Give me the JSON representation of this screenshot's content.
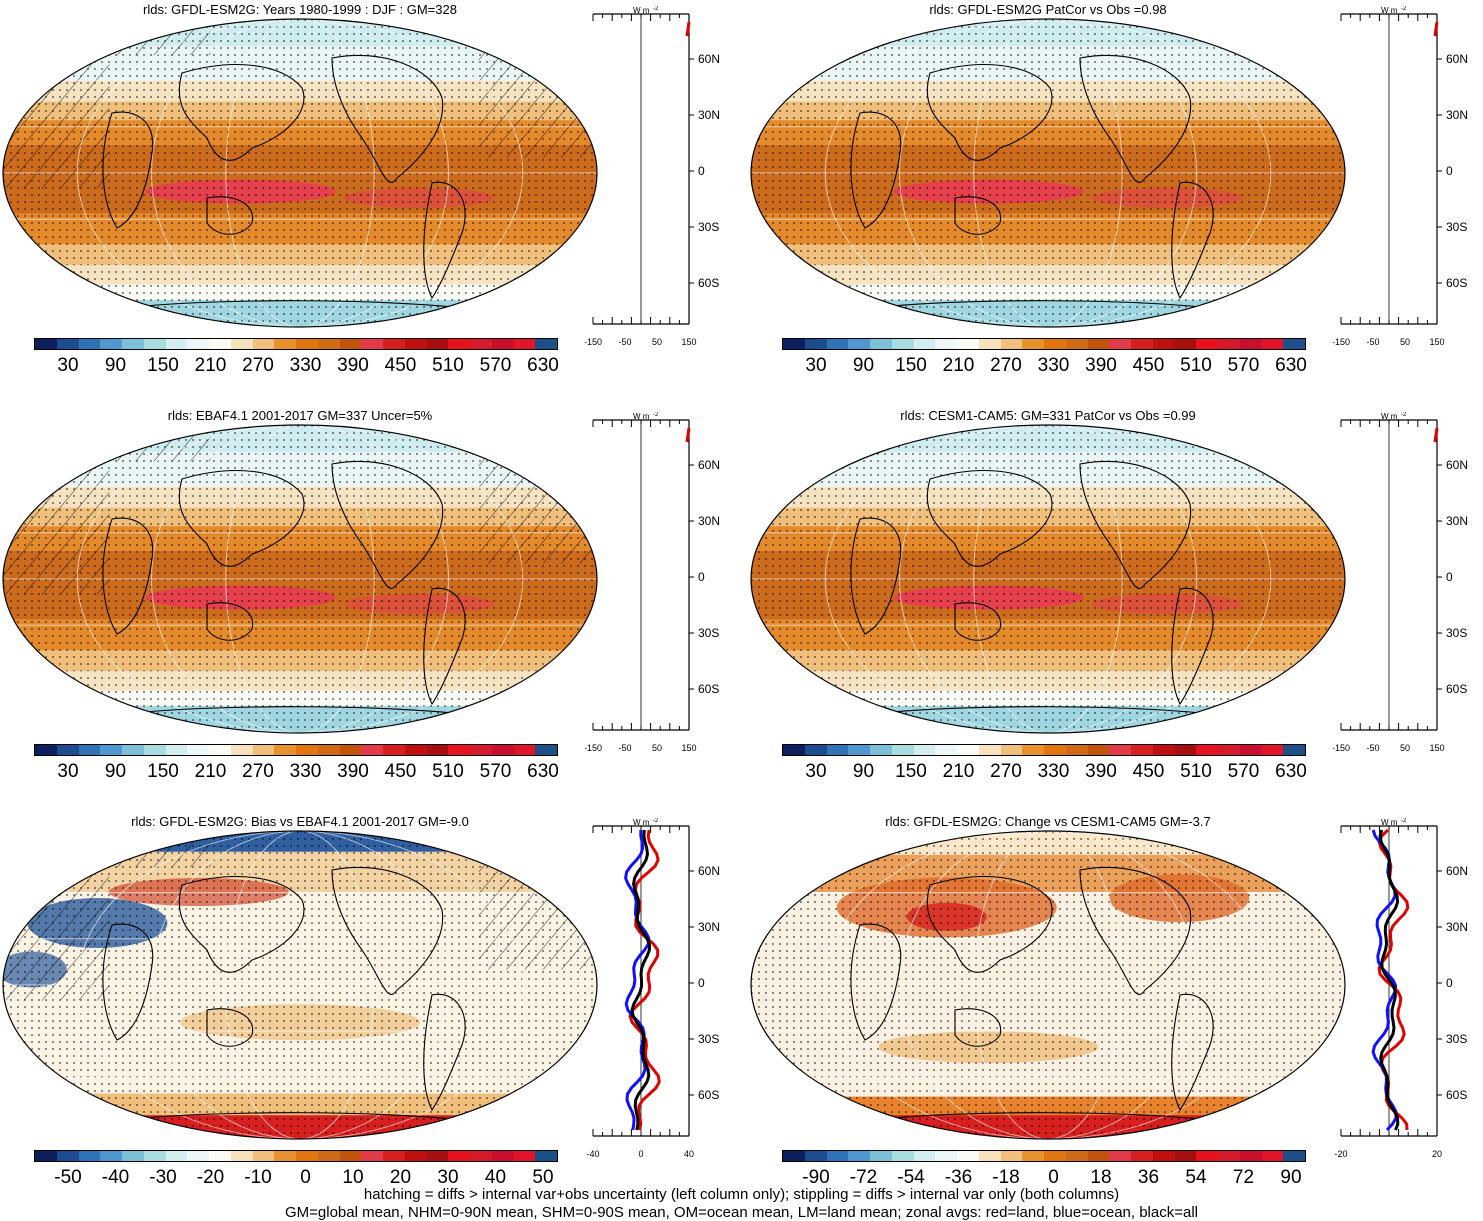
{
  "panels": [
    {
      "title": "rlds: GFDL-ESM2G: Years 1980-1999 : DJF : GM=328",
      "colorbar_ticks": [
        "30",
        "90",
        "150",
        "210",
        "270",
        "330",
        "390",
        "450",
        "510",
        "570",
        "630"
      ],
      "zonal_ticks": [
        "-150",
        "-50",
        "50",
        "150"
      ],
      "palette": "abs",
      "style": "abs",
      "hatch": true
    },
    {
      "title": "rlds: GFDL-ESM2G PatCor vs Obs =0.98",
      "colorbar_ticks": [
        "30",
        "90",
        "150",
        "210",
        "270",
        "330",
        "390",
        "450",
        "510",
        "570",
        "630"
      ],
      "zonal_ticks": [
        "-150",
        "-50",
        "50",
        "150"
      ],
      "palette": "abs",
      "style": "abs",
      "hatch": false
    },
    {
      "title": "rlds: EBAF4.1 2001-2017 GM=337 Uncer=5%",
      "colorbar_ticks": [
        "30",
        "90",
        "150",
        "210",
        "270",
        "330",
        "390",
        "450",
        "510",
        "570",
        "630"
      ],
      "zonal_ticks": [
        "-150",
        "-50",
        "50",
        "150"
      ],
      "palette": "abs",
      "style": "abs",
      "hatch": true
    },
    {
      "title": "rlds: CESM1-CAM5: GM=331 PatCor vs Obs =0.99",
      "colorbar_ticks": [
        "30",
        "90",
        "150",
        "210",
        "270",
        "330",
        "390",
        "450",
        "510",
        "570",
        "630"
      ],
      "zonal_ticks": [
        "-150",
        "-50",
        "50",
        "150"
      ],
      "palette": "abs",
      "style": "abs",
      "hatch": false
    },
    {
      "title": "rlds: GFDL-ESM2G: Bias vs EBAF4.1 2001-2017 GM=-9.0",
      "colorbar_ticks": [
        "-50",
        "-40",
        "-30",
        "-20",
        "-10",
        "0",
        "10",
        "20",
        "30",
        "40",
        "50"
      ],
      "zonal_ticks": [
        "-40",
        "0",
        "40"
      ],
      "palette": "diff",
      "style": "bias",
      "hatch": true
    },
    {
      "title": "rlds: GFDL-ESM2G: Change vs CESM1-CAM5 GM=-3.7",
      "colorbar_ticks": [
        "-90",
        "-72",
        "-54",
        "-36",
        "-18",
        "0",
        "18",
        "36",
        "54",
        "72",
        "90"
      ],
      "zonal_ticks": [
        "-20",
        "20"
      ],
      "palette": "diff",
      "style": "change",
      "hatch": false
    }
  ],
  "lat_labels": [
    "60N",
    "30N",
    "0",
    "30S",
    "60S"
  ],
  "unit_label": "W m",
  "unit_exp": "-2",
  "palettes": {
    "abs": [
      "#0d1f5c",
      "#1d4c8f",
      "#2f73b6",
      "#4f97cf",
      "#7cbfd6",
      "#a8dde0",
      "#d3eef0",
      "#eef7f7",
      "#fbfbf5",
      "#f7e2bd",
      "#f0bf7c",
      "#e7922f",
      "#e07610",
      "#cf6a17",
      "#c2540e",
      "#e33a49",
      "#d81f1f",
      "#bf1010",
      "#a60f0f",
      "#e8111e",
      "#d51a2c",
      "#c8102e",
      "#e2142a",
      "#1d4f88"
    ],
    "diff": [
      "#0d1f5c",
      "#1d4c8f",
      "#2f73b6",
      "#4f97cf",
      "#7cbfd6",
      "#a8dde0",
      "#d3eef0",
      "#eef7f7",
      "#fbfbf5",
      "#f7e2bd",
      "#f0bf7c",
      "#e7922f",
      "#e07610",
      "#cf6a17",
      "#c2540e",
      "#e33a49",
      "#d81f1f",
      "#bf1010",
      "#a60f0f",
      "#e8111e",
      "#d51a2c",
      "#c8102e",
      "#e2142a",
      "#1d4f88"
    ]
  },
  "footer": {
    "line1": "hatching = diffs > internal var+obs uncertainty (left column only); stippling = diffs > internal var only (both columns)",
    "line2": "GM=global mean, NHM=0-90N mean, SHM=0-90S mean, OM=ocean mean, LM=land mean; zonal avgs: red=land, blue=ocean, black=all"
  }
}
